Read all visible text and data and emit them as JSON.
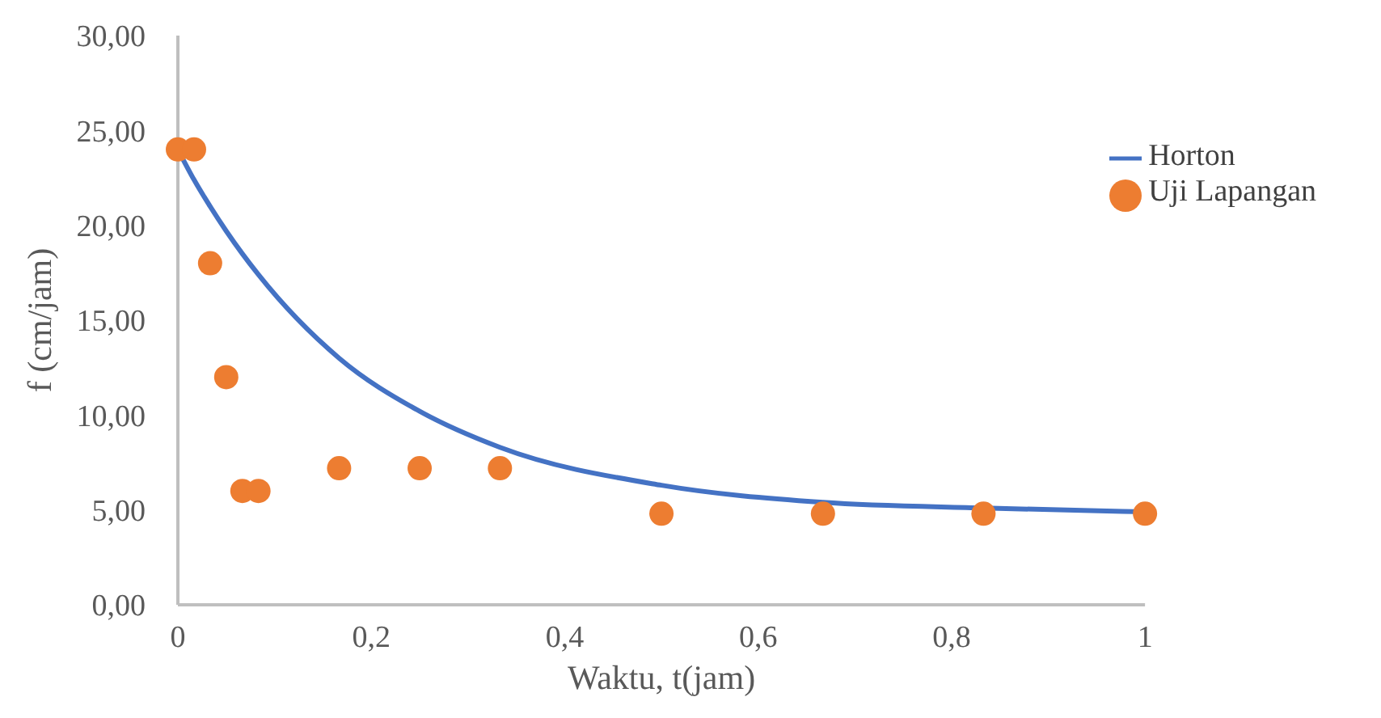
{
  "chart_data": {
    "type": "line",
    "xlabel": "Waktu, t(jam)",
    "ylabel": "f (cm/jam)",
    "xlim": [
      0,
      1
    ],
    "xticks": [
      0,
      {
        "value": 0.2,
        "label": "0,2"
      },
      {
        "value": 0.4,
        "label": "0,4"
      },
      {
        "value": 0.6,
        "label": "0,6"
      },
      {
        "value": 0.8,
        "label": "0,8"
      },
      1
    ],
    "ylim": [
      0,
      30
    ],
    "yticks": [
      {
        "value": 0,
        "label": "0,00"
      },
      {
        "value": 5,
        "label": "5,00"
      },
      {
        "value": 10,
        "label": "10,00"
      },
      {
        "value": 15,
        "label": "15,00"
      },
      {
        "value": 20,
        "label": "20,00"
      },
      {
        "value": 25,
        "label": "25,00"
      },
      {
        "value": 30,
        "label": "30,00"
      }
    ],
    "grid": false,
    "legend": "right",
    "series": [
      {
        "name": "Horton",
        "type": "line",
        "color": "#4472c4",
        "marker": "none",
        "x": [
          0,
          0.0167,
          0.0333,
          0.05,
          0.0667,
          0.0833,
          0.1667,
          0.25,
          0.333,
          0.5,
          0.667,
          0.833,
          1
        ],
        "values": [
          24,
          22.4,
          21.0,
          19.7,
          18.5,
          17.4,
          13.0,
          10.2,
          8.3,
          6.3,
          5.4,
          5.1,
          4.9
        ]
      },
      {
        "name": "Uji Lapangan",
        "type": "scatter",
        "color": "#ed7d31",
        "marker": "circle",
        "x": [
          0,
          0.0167,
          0.0333,
          0.05,
          0.0667,
          0.0833,
          0.1667,
          0.25,
          0.333,
          0.5,
          0.667,
          0.833,
          1
        ],
        "values": [
          24,
          24,
          18,
          12,
          6,
          6,
          7.2,
          7.2,
          7.2,
          4.8,
          4.8,
          4.8,
          4.8
        ]
      }
    ]
  }
}
